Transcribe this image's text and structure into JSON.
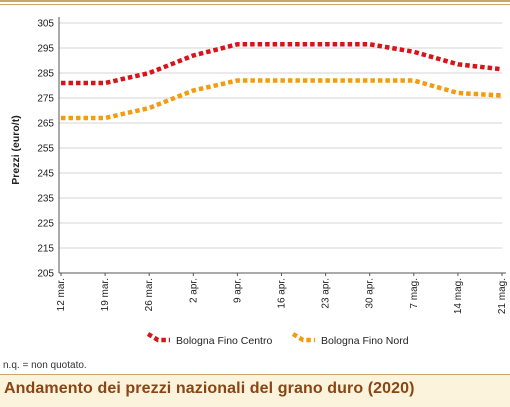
{
  "chart_data": {
    "type": "line",
    "ylabel": "Prezzi (euro/t)",
    "ylim": [
      205,
      305
    ],
    "yticks": [
      205,
      215,
      225,
      235,
      245,
      255,
      265,
      275,
      285,
      295,
      305
    ],
    "categories": [
      "12 mar.",
      "19 mar.",
      "26 mar.",
      "2 apr.",
      "9 apr.",
      "16 apr.",
      "23 apr.",
      "30 apr.",
      "7 mag.",
      "14 mag.",
      "21 mag."
    ],
    "grid": "horizontal",
    "legend": "bottom",
    "series": [
      {
        "name": "Bologna Fino Centro",
        "color": "#d7141a",
        "values": [
          281,
          281,
          285,
          292,
          296.5,
          296.5,
          296.5,
          296.5,
          293.5,
          288.5,
          286.5
        ]
      },
      {
        "name": "Bologna Fino Nord",
        "color": "#f39c12",
        "values": [
          267,
          267,
          271,
          278,
          282,
          282,
          282,
          282,
          282,
          277,
          276
        ]
      }
    ]
  },
  "footnote": "n.q. = non quotato.",
  "footer_title": "Andamento dei prezzi nazionali del grano duro (2020)"
}
